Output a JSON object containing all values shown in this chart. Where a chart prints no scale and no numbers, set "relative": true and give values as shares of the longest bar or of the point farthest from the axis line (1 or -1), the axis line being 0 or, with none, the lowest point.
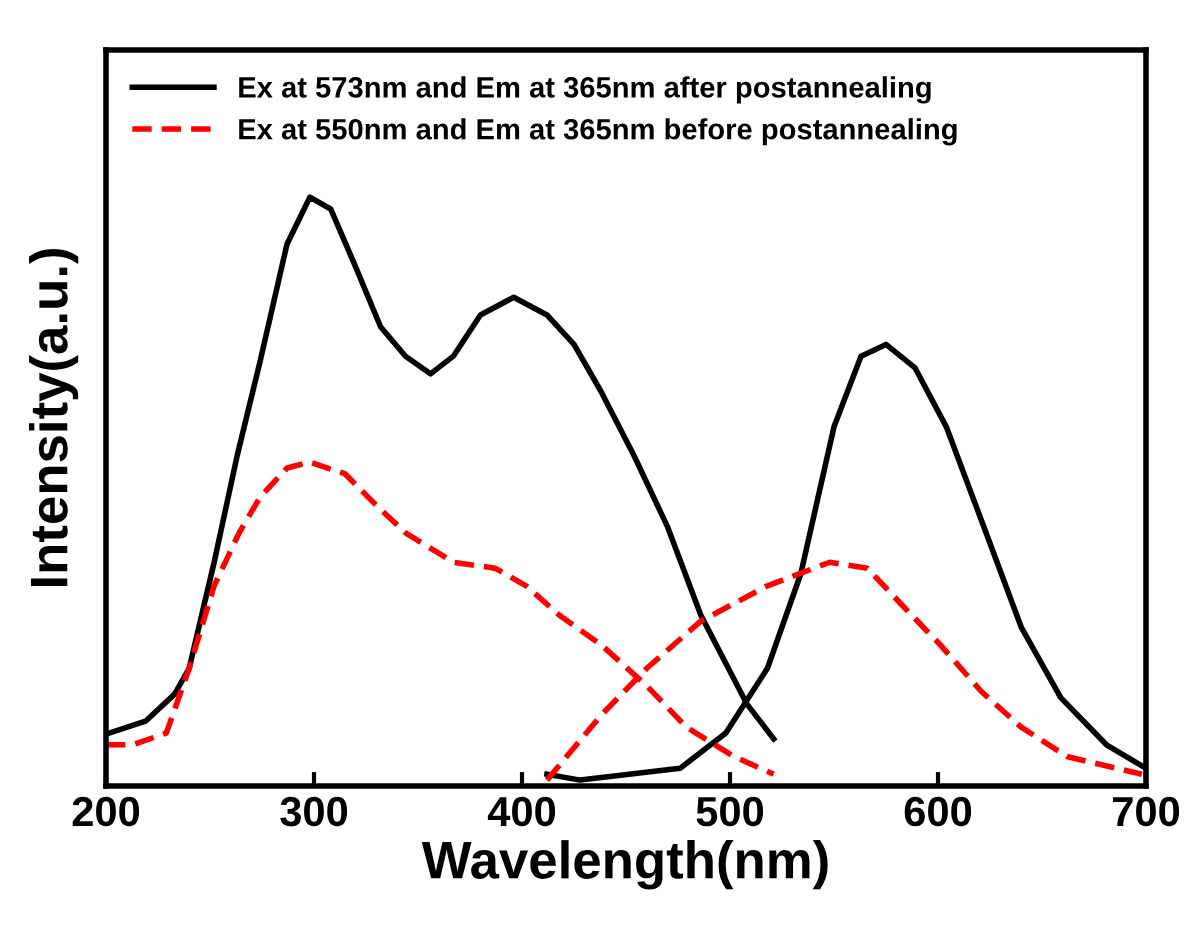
{
  "chart_data": {
    "type": "line",
    "relative": true,
    "xlabel": "Wavelength(nm)",
    "ylabel": "Intensity(a.u.)",
    "xlim": [
      200,
      700
    ],
    "xticks": [
      200,
      300,
      400,
      500,
      600,
      700
    ],
    "legend": "top left",
    "grid": false,
    "marker": "none",
    "series": [
      {
        "name": "Ex at 573nm and Em at 365nm after postannealing",
        "color": "#000000",
        "line_style": "solid",
        "x": [
          200,
          219,
          233,
          240,
          252,
          263,
          274,
          287,
          298,
          308,
          319,
          332,
          344,
          356,
          367,
          380,
          396,
          412,
          425,
          438,
          454,
          470,
          486,
          508,
          521
        ],
        "values": [
          0.088,
          0.11,
          0.156,
          0.2,
          0.38,
          0.56,
          0.72,
          0.92,
          1.0,
          0.98,
          0.89,
          0.78,
          0.73,
          0.7,
          0.73,
          0.8,
          0.83,
          0.8,
          0.75,
          0.67,
          0.56,
          0.44,
          0.29,
          0.14,
          0.08
        ]
      },
      {
        "color": "#000000",
        "line_style": "solid",
        "x": [
          412,
          428,
          476,
          498,
          518,
          534,
          550,
          563,
          575,
          589,
          604,
          621,
          640,
          659,
          681,
          700
        ],
        "values": [
          0.02,
          0.01,
          0.03,
          0.09,
          0.2,
          0.36,
          0.61,
          0.73,
          0.75,
          0.71,
          0.61,
          0.45,
          0.27,
          0.15,
          0.07,
          0.03
        ]
      },
      {
        "name": "Ex at 550nm and Em at 365nm before postannealing",
        "color": "#ff0000",
        "line_style": "dashed",
        "x": [
          200,
          213,
          229,
          240,
          252,
          264,
          274,
          287,
          298,
          315,
          329,
          344,
          367,
          387,
          402,
          418,
          438,
          460,
          479,
          502,
          521
        ],
        "values": [
          0.07,
          0.07,
          0.09,
          0.2,
          0.34,
          0.43,
          0.49,
          0.54,
          0.55,
          0.53,
          0.48,
          0.43,
          0.38,
          0.37,
          0.34,
          0.29,
          0.24,
          0.17,
          0.1,
          0.05,
          0.02
        ]
      },
      {
        "color": "#ff0000",
        "line_style": "dashed",
        "x": [
          412,
          438,
          460,
          486,
          518,
          548,
          566,
          582,
          601,
          621,
          640,
          662,
          698
        ],
        "values": [
          0.01,
          0.12,
          0.2,
          0.28,
          0.34,
          0.38,
          0.37,
          0.31,
          0.24,
          0.16,
          0.1,
          0.05,
          0.02
        ]
      }
    ]
  }
}
